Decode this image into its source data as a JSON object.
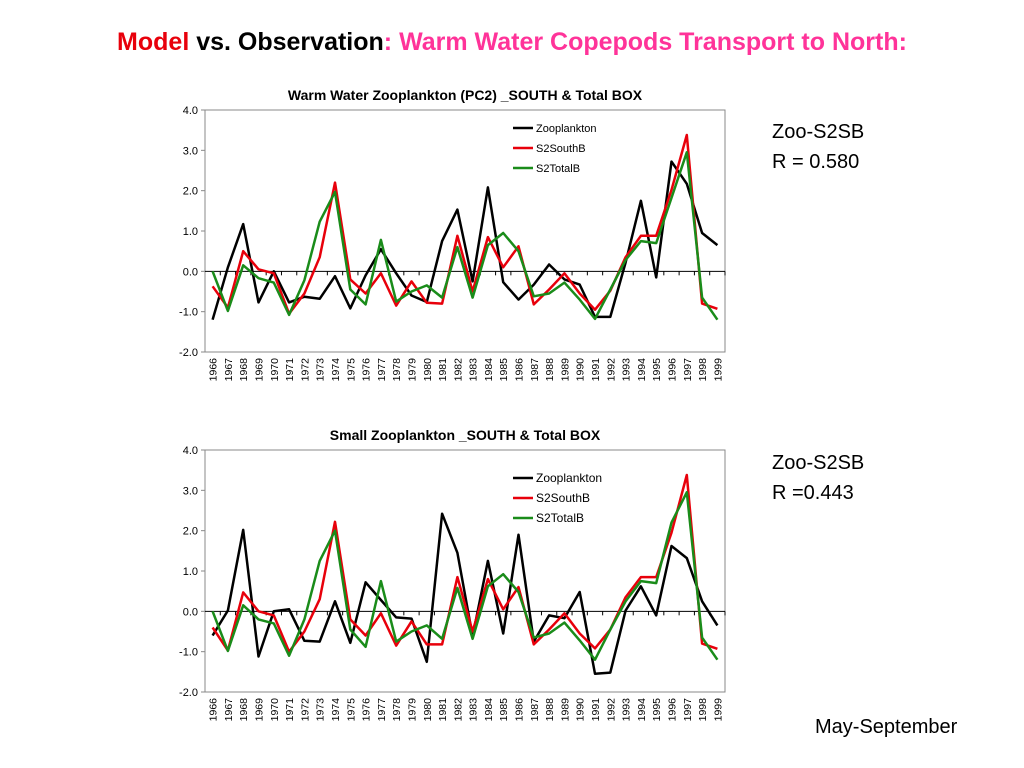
{
  "header": {
    "title_part1": "Model",
    "title_part2": " vs. Observation",
    "title_part3": ": Warm Water Copepods Transport to North:",
    "color_part1": "#e8000b",
    "color_part3": "#ff3399"
  },
  "notes": {
    "chart1_label": "Zoo-S2SB",
    "chart1_r": "R = 0.580",
    "chart2_label": "Zoo-S2SB",
    "chart2_r": "R =0.443",
    "season": "May-September"
  },
  "chart_data": [
    {
      "type": "line",
      "title": "Warm Water Zooplankton (PC2) _SOUTH & Total BOX",
      "xlabel": "",
      "ylabel": "",
      "ylim": [
        -2.0,
        4.0
      ],
      "yticks": [
        "-2.0",
        "-1.0",
        "0.0",
        "1.0",
        "2.0",
        "3.0",
        "4.0"
      ],
      "grid": false,
      "legend_position": "top-right",
      "categories": [
        "1966",
        "1967",
        "1968",
        "1969",
        "1970",
        "1971",
        "1972",
        "1973",
        "1974",
        "1975",
        "1976",
        "1977",
        "1978",
        "1979",
        "1980",
        "1981",
        "1982",
        "1983",
        "1984",
        "1985",
        "1986",
        "1987",
        "1988",
        "1989",
        "1990",
        "1991",
        "1992",
        "1993",
        "1994",
        "1995",
        "1996",
        "1997",
        "1998",
        "1999"
      ],
      "series": [
        {
          "name": "Zooplankton",
          "color": "#000000",
          "values": [
            -1.2,
            0.1,
            1.17,
            -0.77,
            0.0,
            -0.77,
            -0.63,
            -0.68,
            -0.12,
            -0.92,
            -0.1,
            0.55,
            -0.05,
            -0.6,
            -0.76,
            0.75,
            1.53,
            -0.25,
            2.08,
            -0.27,
            -0.7,
            -0.33,
            0.17,
            -0.2,
            -0.33,
            -1.13,
            -1.13,
            0.22,
            1.75,
            -0.15,
            2.72,
            2.17,
            0.95,
            0.65
          ]
        },
        {
          "name": "S2SouthB",
          "color": "#e8000b",
          "values": [
            -0.37,
            -0.9,
            0.5,
            0.05,
            -0.05,
            -1.05,
            -0.55,
            0.35,
            2.2,
            -0.2,
            -0.55,
            -0.05,
            -0.85,
            -0.25,
            -0.78,
            -0.8,
            0.88,
            -0.5,
            0.85,
            0.1,
            0.62,
            -0.82,
            -0.45,
            -0.05,
            -0.55,
            -0.95,
            -0.48,
            0.35,
            0.88,
            0.88,
            2.02,
            3.38,
            -0.8,
            -0.93
          ]
        },
        {
          "name": "S2TotalB",
          "color": "#1a8c1a",
          "values": [
            0.0,
            -0.98,
            0.15,
            -0.17,
            -0.28,
            -1.08,
            -0.22,
            1.23,
            1.97,
            -0.45,
            -0.82,
            0.78,
            -0.75,
            -0.5,
            -0.35,
            -0.65,
            0.6,
            -0.65,
            0.65,
            0.95,
            0.5,
            -0.62,
            -0.55,
            -0.28,
            -0.7,
            -1.18,
            -0.45,
            0.28,
            0.75,
            0.7,
            1.82,
            2.95,
            -0.65,
            -1.2
          ]
        }
      ]
    },
    {
      "type": "line",
      "title": "Small Zooplankton  _SOUTH & Total BOX",
      "xlabel": "",
      "ylabel": "",
      "ylim": [
        -2.0,
        4.0
      ],
      "yticks": [
        "-2.0",
        "-1.0",
        "0.0",
        "1.0",
        "2.0",
        "3.0",
        "4.0"
      ],
      "grid": false,
      "legend_position": "top-right",
      "categories": [
        "1966",
        "1967",
        "1968",
        "1969",
        "1970",
        "1971",
        "1972",
        "1973",
        "1974",
        "1975",
        "1976",
        "1977",
        "1978",
        "1979",
        "1980",
        "1981",
        "1982",
        "1983",
        "1984",
        "1985",
        "1986",
        "1987",
        "1988",
        "1989",
        "1990",
        "1991",
        "1992",
        "1993",
        "1994",
        "1995",
        "1996",
        "1997",
        "1998",
        "1999"
      ],
      "series": [
        {
          "name": "Zooplankton",
          "color": "#000000",
          "values": [
            -0.6,
            0.02,
            2.02,
            -1.12,
            0.0,
            0.05,
            -0.73,
            -0.75,
            0.25,
            -0.78,
            0.72,
            0.28,
            -0.15,
            -0.18,
            -1.25,
            2.42,
            1.45,
            -0.62,
            1.25,
            -0.55,
            1.9,
            -0.75,
            -0.1,
            -0.17,
            0.48,
            -1.55,
            -1.52,
            0.02,
            0.62,
            -0.1,
            1.62,
            1.32,
            0.25,
            -0.35
          ]
        },
        {
          "name": "S2SouthB",
          "color": "#e8000b",
          "values": [
            -0.4,
            -0.97,
            0.47,
            0.0,
            -0.1,
            -1.0,
            -0.5,
            0.3,
            2.22,
            -0.2,
            -0.6,
            -0.05,
            -0.85,
            -0.25,
            -0.82,
            -0.82,
            0.85,
            -0.5,
            0.8,
            0.05,
            0.6,
            -0.82,
            -0.45,
            -0.05,
            -0.55,
            -0.92,
            -0.45,
            0.35,
            0.85,
            0.85,
            1.95,
            3.38,
            -0.8,
            -0.93
          ]
        },
        {
          "name": "S2TotalB",
          "color": "#1a8c1a",
          "values": [
            0.0,
            -0.98,
            0.15,
            -0.2,
            -0.3,
            -1.1,
            -0.2,
            1.25,
            2.0,
            -0.45,
            -0.88,
            0.75,
            -0.75,
            -0.5,
            -0.35,
            -0.68,
            0.58,
            -0.68,
            0.62,
            0.92,
            0.48,
            -0.65,
            -0.55,
            -0.28,
            -0.72,
            -1.2,
            -0.45,
            0.25,
            0.75,
            0.7,
            2.2,
            2.95,
            -0.65,
            -1.2
          ]
        }
      ]
    }
  ]
}
